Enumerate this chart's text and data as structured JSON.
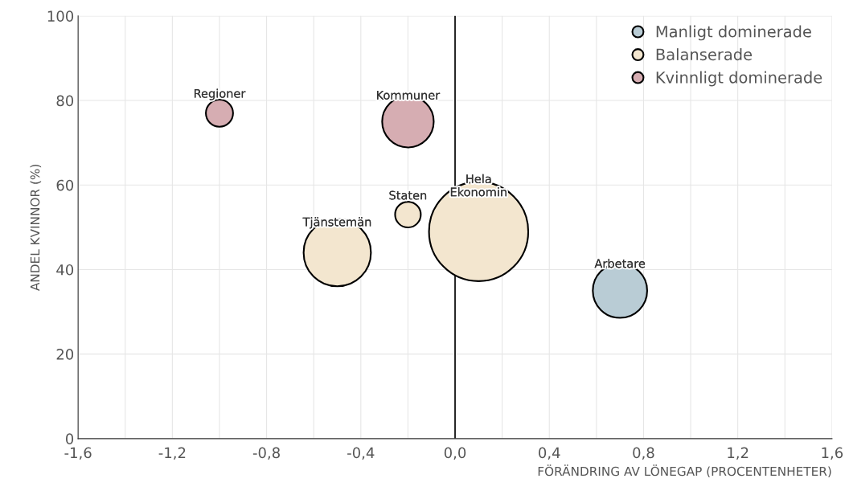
{
  "chart_data": {
    "type": "bubble",
    "xlabel": "FÖRÄNDRING AV LÖNEGAP (PROCENTENHETER)",
    "ylabel": "ANDEL KVINNOR (%)",
    "xlim": [
      -1.6,
      1.6
    ],
    "xticks": [
      {
        "value": -1.6,
        "label": "-1,6"
      },
      {
        "value": -1.4,
        "label": null
      },
      {
        "value": -1.2,
        "label": "-1,2"
      },
      {
        "value": -1.0,
        "label": null
      },
      {
        "value": -0.8,
        "label": "-0,8"
      },
      {
        "value": -0.6,
        "label": null
      },
      {
        "value": -0.4,
        "label": "-0,4"
      },
      {
        "value": -0.2,
        "label": null
      },
      {
        "value": 0,
        "label": "0,0"
      },
      {
        "value": 0.2,
        "label": null
      },
      {
        "value": 0.4,
        "label": "0,4"
      },
      {
        "value": 0.6,
        "label": null
      },
      {
        "value": 0.8,
        "label": "0,8"
      },
      {
        "value": 1.0,
        "label": null
      },
      {
        "value": 1.2,
        "label": "1,2"
      },
      {
        "value": 1.4,
        "label": null
      },
      {
        "value": 1.6,
        "label": "1,6"
      }
    ],
    "ylim": [
      0,
      100
    ],
    "yticks": [
      0,
      20,
      40,
      60,
      80,
      100
    ],
    "grid": true,
    "legend": "top right",
    "marker": "circle",
    "series": [
      {
        "name": "Manligt dominerade",
        "color": "#b9ccd5",
        "x": [
          0.7
        ],
        "values": [
          35
        ],
        "sizes": [
          0.3
        ]
      },
      {
        "name": "Balanserade",
        "color": "#f3e6cf",
        "x": [
          -0.5,
          -0.2,
          0.1
        ],
        "values": [
          44,
          53,
          49
        ],
        "sizes": [
          0.46,
          0.067,
          1
        ]
      },
      {
        "name": "Kvinnligt dominerade",
        "color": "#d6adb2",
        "x": [
          -1.0,
          -0.2
        ],
        "values": [
          77,
          75
        ],
        "sizes": [
          0.075,
          0.27
        ]
      }
    ],
    "ref_lines": [
      {
        "axis": "x",
        "value": 0,
        "color": "#000000"
      }
    ],
    "annotations": [
      {
        "text": "Regioner",
        "x": -1.0,
        "y": 77
      },
      {
        "text": "Kommuner",
        "x": -0.2,
        "y": 75
      },
      {
        "text": "Staten",
        "x": -0.2,
        "y": 53
      },
      {
        "text": "Tjänstemän",
        "x": -0.5,
        "y": 44
      },
      {
        "text": "Hela\nEkonomin",
        "x": 0.1,
        "y": 49
      },
      {
        "text": "Arbetare",
        "x": 0.7,
        "y": 35
      }
    ]
  }
}
